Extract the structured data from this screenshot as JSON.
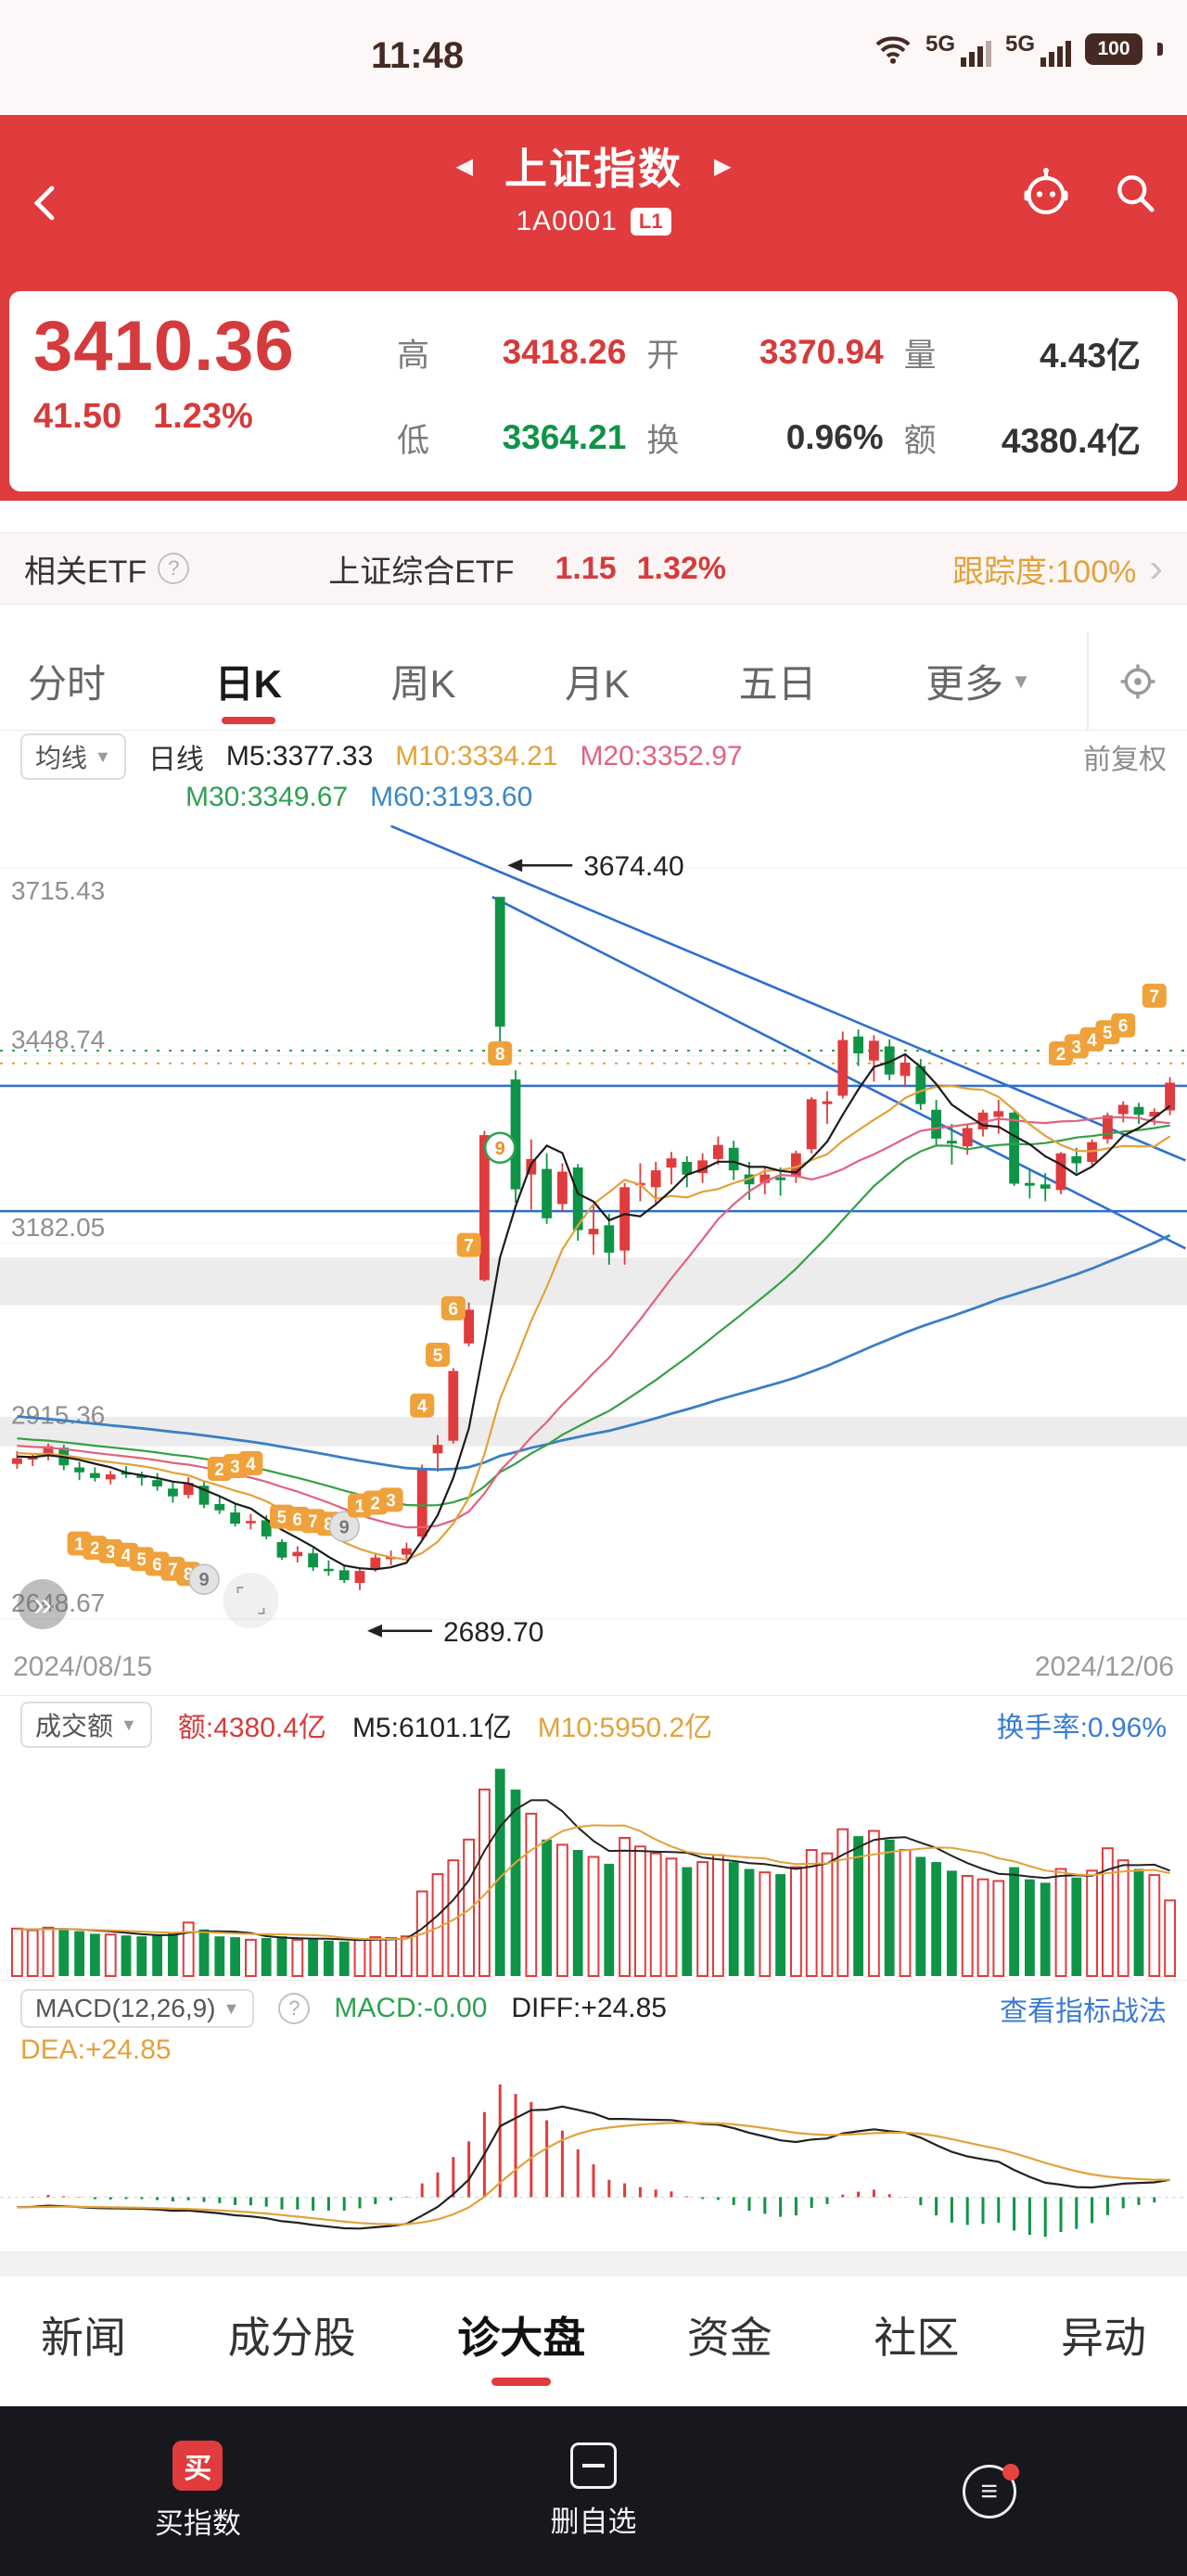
{
  "colors": {
    "red": "#e03b3d",
    "up": "#e03b3d",
    "down": "#0f9447",
    "orange": "#e2a23b",
    "pink": "#e0637f",
    "ma_green": "#35a046",
    "blue": "#3b7bd4",
    "ma60_blue": "#3a7fc4",
    "trend_blue": "#2e6fd0",
    "badge_orange": "#efa23b"
  },
  "icons": {
    "help": "?",
    "chevron_right": "›",
    "dropdown": "▼",
    "prev": "◀",
    "next": "▶",
    "double_chevron": "»",
    "menu": "≡"
  },
  "status_bar": {
    "time": "11:48",
    "net1": "5G",
    "net2": "5G",
    "battery": "100"
  },
  "header": {
    "title": "上证指数",
    "code": "1A0001",
    "badge": "L1"
  },
  "quote": {
    "price": "3410.36",
    "change": "41.50",
    "change_pct": "1.23%",
    "high_label": "高",
    "high": "3418.26",
    "open_label": "开",
    "open": "3370.94",
    "vol_label": "量",
    "vol": "4.43亿",
    "low_label": "低",
    "low": "3364.21",
    "turn_label": "换",
    "turn": "0.96%",
    "amt_label": "额",
    "amt": "4380.4亿"
  },
  "etf_bar": {
    "label": "相关ETF",
    "name": "上证综合ETF",
    "chg": "1.15",
    "chg_pct": "1.32%",
    "tracking": "跟踪度:100%"
  },
  "period_tabs": [
    {
      "id": "minute",
      "label": "分时"
    },
    {
      "id": "daily-k",
      "label": "日K",
      "active": true
    },
    {
      "id": "weekly-k",
      "label": "周K"
    },
    {
      "id": "monthly-k",
      "label": "月K"
    },
    {
      "id": "five-day",
      "label": "五日"
    },
    {
      "id": "more",
      "label": "更多",
      "dropdown": true
    }
  ],
  "ma_bar": {
    "button": "均线",
    "period": "日线",
    "m5": "M5:3377.33",
    "m10": "M10:3334.21",
    "m20": "M20:3352.97",
    "m30": "M30:3349.67",
    "m60": "M60:3193.60",
    "adjust": "前复权"
  },
  "volume_panel": {
    "button": "成交额",
    "amount": "额:4380.4亿",
    "m5": "M5:6101.1亿",
    "m10": "M10:5950.2亿",
    "turnover": "换手率:0.96%"
  },
  "macd_panel": {
    "button": "MACD(12,26,9)",
    "macd": "MACD:-0.00",
    "diff": "DIFF:+24.85",
    "dea": "DEA:+24.85",
    "link": "查看指标战法"
  },
  "bottom_tabs": [
    {
      "id": "news",
      "label": "新闻"
    },
    {
      "id": "constituents",
      "label": "成分股"
    },
    {
      "id": "diagnose",
      "label": "诊大盘",
      "active": true
    },
    {
      "id": "funds",
      "label": "资金"
    },
    {
      "id": "community",
      "label": "社区"
    },
    {
      "id": "movers",
      "label": "异动"
    }
  ],
  "dock": {
    "buy_icon": "买",
    "buy_label": "买指数",
    "del_label": "删自选"
  },
  "chart_data": {
    "type": "candlestick",
    "title": "上证指数 1A0001 日K 前复权",
    "date_start": "2024/08/15",
    "date_end": "2024/12/06",
    "y_axis_labels": [
      3715.43,
      3448.74,
      3182.05,
      2915.36,
      2648.67
    ],
    "y_range": [
      2648.67,
      3715.43
    ],
    "high_annotation": "3674.40",
    "low_annotation": "2689.70",
    "ma_periods": [
      5,
      10,
      20,
      30,
      60
    ],
    "horizontal_lines": [
      3406,
      3228
    ],
    "dashed_lines": [
      {
        "price": 3438,
        "color": "#e2a23b"
      },
      {
        "price": 3456,
        "color": "#35a046"
      }
    ],
    "trend_lines": [
      {
        "d1": 24.5,
        "p1": 3775,
        "d2": 75.5,
        "p2": 3300
      },
      {
        "d1": 31,
        "p1": 3674.4,
        "d2": 75.5,
        "p2": 3175
      }
    ],
    "gray_bands": [
      [
        3162,
        3094
      ],
      [
        2936,
        2894
      ]
    ],
    "td_badges": [
      [
        4,
        2756,
        "1",
        "s"
      ],
      [
        5,
        2750,
        "2",
        "s"
      ],
      [
        6,
        2745,
        "3",
        "s"
      ],
      [
        7,
        2740,
        "4",
        "s"
      ],
      [
        8,
        2734,
        "5",
        "s"
      ],
      [
        9,
        2727,
        "6",
        "s"
      ],
      [
        10,
        2720,
        "7",
        "s"
      ],
      [
        11,
        2713,
        "8",
        "s"
      ],
      [
        12,
        2705,
        "9",
        "g"
      ],
      [
        13,
        2862,
        "2",
        "s"
      ],
      [
        14,
        2866,
        "3",
        "s"
      ],
      [
        15,
        2870,
        "4",
        "s"
      ],
      [
        17,
        2794,
        "5",
        "s"
      ],
      [
        18,
        2791,
        "6",
        "s"
      ],
      [
        19,
        2788,
        "7",
        "s"
      ],
      [
        20,
        2784,
        "8",
        "s"
      ],
      [
        21,
        2780,
        "9",
        "g"
      ],
      [
        22,
        2810,
        "1",
        "s"
      ],
      [
        23,
        2814,
        "2",
        "s"
      ],
      [
        24,
        2818,
        "3",
        "s"
      ],
      [
        26,
        2952,
        "4",
        "s"
      ],
      [
        27,
        3024,
        "5",
        "s"
      ],
      [
        28,
        3090,
        "6",
        "s"
      ],
      [
        29,
        3180,
        "7",
        "s"
      ],
      [
        31,
        3452,
        "8",
        "s"
      ],
      [
        31,
        3318,
        "9",
        "G"
      ],
      [
        67,
        3452,
        "2",
        "s"
      ],
      [
        68,
        3462,
        "3",
        "s"
      ],
      [
        69,
        3472,
        "4",
        "s"
      ],
      [
        70,
        3482,
        "5",
        "s"
      ],
      [
        71,
        3492,
        "6",
        "s"
      ],
      [
        73,
        3534,
        "7",
        "s"
      ]
    ],
    "candles": [
      [
        2869,
        2887,
        2862,
        2877,
        2750
      ],
      [
        2875,
        2884,
        2866,
        2879,
        2650
      ],
      [
        2880,
        2898,
        2874,
        2894,
        2800
      ],
      [
        2892,
        2896,
        2860,
        2867,
        2700
      ],
      [
        2864,
        2872,
        2846,
        2857,
        2600
      ],
      [
        2856,
        2864,
        2844,
        2849,
        2450
      ],
      [
        2847,
        2859,
        2840,
        2854,
        2400
      ],
      [
        2857,
        2866,
        2849,
        2856,
        2350
      ],
      [
        2853,
        2858,
        2838,
        2849,
        2300
      ],
      [
        2846,
        2856,
        2831,
        2837,
        2350
      ],
      [
        2834,
        2844,
        2814,
        2823,
        2500
      ],
      [
        2825,
        2850,
        2820,
        2842,
        3100
      ],
      [
        2838,
        2845,
        2806,
        2811,
        2700
      ],
      [
        2812,
        2823,
        2798,
        2803,
        2300
      ],
      [
        2800,
        2812,
        2780,
        2784,
        2250
      ],
      [
        2786,
        2798,
        2776,
        2788,
        2100
      ],
      [
        2789,
        2796,
        2762,
        2766,
        2200
      ],
      [
        2758,
        2762,
        2733,
        2736,
        2300
      ],
      [
        2738,
        2752,
        2729,
        2744,
        2100
      ],
      [
        2742,
        2749,
        2717,
        2722,
        2150
      ],
      [
        2720,
        2732,
        2710,
        2717,
        2050
      ],
      [
        2718,
        2726,
        2700,
        2704,
        2000
      ],
      [
        2700,
        2720,
        2689.7,
        2717,
        2100
      ],
      [
        2720,
        2743,
        2716,
        2736,
        2250
      ],
      [
        2734,
        2746,
        2725,
        2737,
        2200
      ],
      [
        2740,
        2757,
        2734,
        2749,
        2300
      ],
      [
        2766,
        2868,
        2762,
        2863,
        4900
      ],
      [
        2884,
        2910,
        2858,
        2896,
        5900
      ],
      [
        2902,
        3005,
        2898,
        3001,
        6700
      ],
      [
        3040,
        3098,
        3036,
        3088,
        7900
      ],
      [
        3130,
        3342,
        3128,
        3336,
        10800
      ],
      [
        3674.4,
        3674.4,
        3439,
        3490,
        12000
      ],
      [
        3415,
        3428,
        3240,
        3259,
        10800
      ],
      [
        3280,
        3330,
        3230,
        3302,
        9400
      ],
      [
        3288,
        3310,
        3210,
        3218,
        7900
      ],
      [
        3238,
        3296,
        3228,
        3284,
        7600
      ],
      [
        3290,
        3295,
        3186,
        3201,
        7300
      ],
      [
        3195,
        3238,
        3166,
        3203,
        6900
      ],
      [
        3208,
        3224,
        3152,
        3169,
        6500
      ],
      [
        3172,
        3268,
        3152,
        3262,
        8000
      ],
      [
        3268,
        3296,
        3242,
        3268,
        7500
      ],
      [
        3262,
        3298,
        3238,
        3286,
        7100
      ],
      [
        3290,
        3312,
        3266,
        3303,
        6800
      ],
      [
        3298,
        3306,
        3262,
        3280,
        6300
      ],
      [
        3282,
        3310,
        3268,
        3300,
        6600
      ],
      [
        3302,
        3334,
        3294,
        3322,
        7000
      ],
      [
        3318,
        3328,
        3272,
        3286,
        6600
      ],
      [
        3280,
        3298,
        3244,
        3266,
        6200
      ],
      [
        3268,
        3292,
        3252,
        3280,
        6000
      ],
      [
        3276,
        3290,
        3250,
        3272,
        5900
      ],
      [
        3278,
        3314,
        3268,
        3310,
        6300
      ],
      [
        3316,
        3390,
        3310,
        3387,
        7300
      ],
      [
        3380,
        3398,
        3352,
        3384,
        7100
      ],
      [
        3392,
        3483,
        3388,
        3471,
        8500
      ],
      [
        3476,
        3486,
        3434,
        3452,
        8100
      ],
      [
        3442,
        3478,
        3412,
        3470,
        8400
      ],
      [
        3462,
        3472,
        3414,
        3422,
        7900
      ],
      [
        3420,
        3450,
        3404,
        3439,
        7300
      ],
      [
        3434,
        3444,
        3372,
        3380,
        6900
      ],
      [
        3372,
        3386,
        3322,
        3331,
        6600
      ],
      [
        3328,
        3352,
        3294,
        3324,
        6100
      ],
      [
        3320,
        3350,
        3308,
        3346,
        5800
      ],
      [
        3344,
        3372,
        3334,
        3368,
        5600
      ],
      [
        3362,
        3386,
        3338,
        3370,
        5500
      ],
      [
        3368,
        3372,
        3264,
        3267,
        6300
      ],
      [
        3268,
        3288,
        3246,
        3264,
        5600
      ],
      [
        3266,
        3282,
        3242,
        3260,
        5400
      ],
      [
        3258,
        3312,
        3252,
        3310,
        6200
      ],
      [
        3306,
        3318,
        3282,
        3296,
        5700
      ],
      [
        3298,
        3330,
        3290,
        3326,
        6100
      ],
      [
        3330,
        3368,
        3324,
        3364,
        7400
      ],
      [
        3366,
        3384,
        3354,
        3379,
        6700
      ],
      [
        3376,
        3382,
        3352,
        3365,
        6200
      ],
      [
        3362,
        3374,
        3350,
        3369,
        5845
      ],
      [
        3370.94,
        3418.26,
        3364.21,
        3410.36,
        4380
      ]
    ],
    "macd_params": {
      "fast": 12,
      "slow": 26,
      "signal": 9
    }
  }
}
